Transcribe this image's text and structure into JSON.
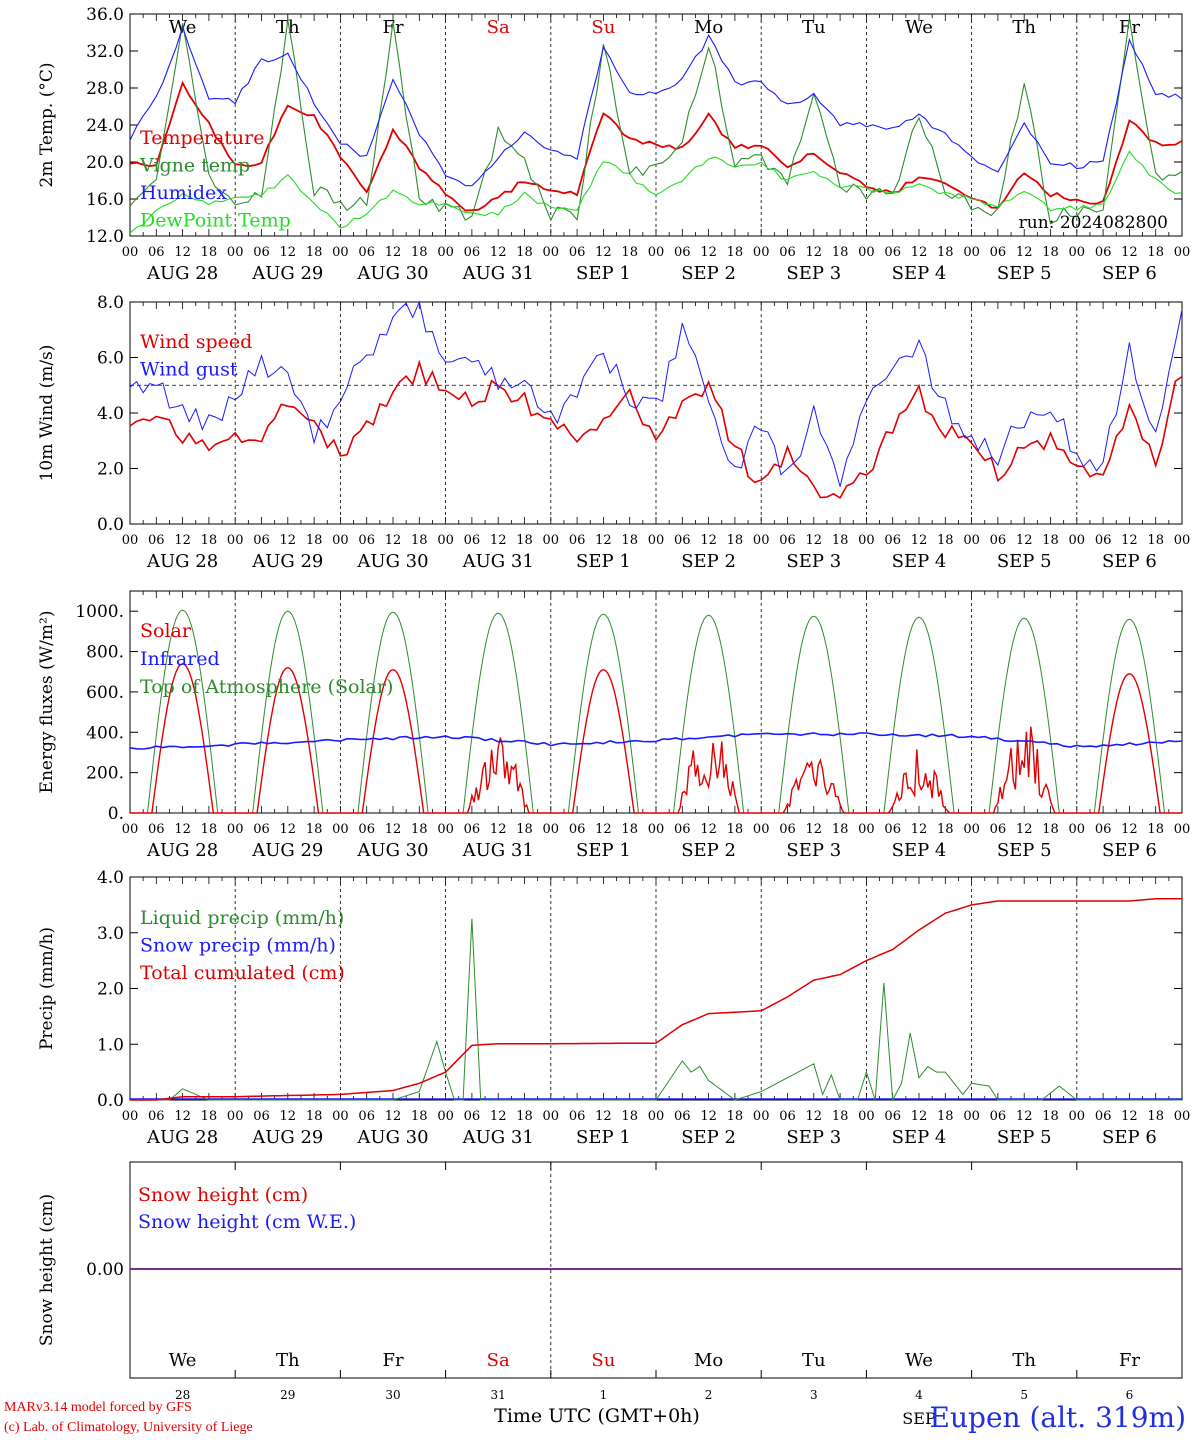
{
  "colors": {
    "red": "#e00000",
    "green": "#2e8b2e",
    "blue": "#1a1aff",
    "lightgreen": "#22dd22",
    "purple": "#7b2d8e"
  },
  "run_label": "run: 2024082800",
  "day_names": [
    "We",
    "Th",
    "Fr",
    "Sa",
    "Su",
    "Mo",
    "Tu",
    "We",
    "Th",
    "Fr"
  ],
  "day_name_colors": [
    "black",
    "black",
    "black",
    "red",
    "red",
    "black",
    "black",
    "black",
    "black",
    "black"
  ],
  "date_labels": [
    "AUG 28",
    "AUG 29",
    "AUG 30",
    "AUG 31",
    "SEP  1",
    "SEP  2",
    "SEP  3",
    "SEP  4",
    "SEP  5",
    "SEP  6"
  ],
  "hour_ticks": [
    "00",
    "06",
    "12",
    "18"
  ],
  "bottom_day_numbers": [
    "28",
    "29",
    "30",
    "31",
    "1",
    "2",
    "3",
    "4",
    "5",
    "6"
  ],
  "bottom_month": "SEP",
  "time_axis_label": "Time UTC (GMT+0h)",
  "footer": {
    "line1": "MARv3.14 model forced by GFS",
    "line2": "(c) Lab. of Climatology, University of Liege"
  },
  "station": "Eupen (alt. 319m)",
  "chart_data": [
    {
      "type": "line",
      "ylabel": "2m Temp. (°C)",
      "ylim": [
        12,
        36
      ],
      "yticks": [
        "12.0",
        "16.0",
        "20.0",
        "24.0",
        "28.0",
        "32.0",
        "36.0"
      ],
      "x_hours": [
        0,
        6,
        12,
        18,
        24,
        30,
        36,
        42,
        48,
        54,
        60,
        66,
        72,
        78,
        84,
        90,
        96,
        102,
        108,
        114,
        120,
        126,
        132,
        138,
        144,
        150,
        156,
        162,
        168,
        174,
        180,
        186,
        192,
        198,
        204,
        210,
        216,
        222,
        228,
        234,
        240
      ],
      "series": [
        {
          "name": "Temperature",
          "color": "red",
          "values": [
            20,
            19.5,
            28.5,
            24,
            19.5,
            20,
            26,
            25,
            20.5,
            17,
            23.5,
            19.5,
            16.5,
            14.5,
            16,
            18,
            17,
            16.5,
            25.5,
            22.5,
            22,
            21.5,
            25,
            21.5,
            22,
            19.5,
            21,
            19,
            17.5,
            16.5,
            18.5,
            17.5,
            16,
            15,
            19,
            16.5,
            16,
            15.5,
            24.5,
            22,
            22
          ]
        },
        {
          "name": "Vigne temp",
          "color": "green",
          "values": [
            16,
            18,
            34.5,
            18,
            15.5,
            17,
            35,
            17,
            15.5,
            15.5,
            34.5,
            16,
            15,
            14,
            23,
            20,
            14.5,
            14,
            33,
            19,
            19.5,
            22,
            33,
            20,
            20.5,
            17.5,
            27.5,
            17.5,
            16.5,
            16.5,
            25,
            17,
            15.5,
            14.5,
            29,
            14,
            14.5,
            15,
            35.5,
            18.5,
            18.5
          ]
        },
        {
          "name": "Humidex",
          "color": "blue",
          "values": [
            22.5,
            27,
            34.5,
            27,
            26.5,
            31,
            31.5,
            26.5,
            22,
            20.5,
            29,
            23,
            18.5,
            17.5,
            20.5,
            23,
            21,
            20.5,
            32.5,
            27.5,
            27.5,
            29,
            33.5,
            28.5,
            28.5,
            26,
            27.5,
            24,
            24,
            23.5,
            25,
            23,
            20.5,
            19,
            24,
            20,
            19.5,
            20,
            33,
            27.5,
            27
          ]
        },
        {
          "name": "DewPoint Temp",
          "color": "lightgreen",
          "values": [
            12.5,
            14.5,
            16.5,
            15.5,
            16,
            16.5,
            18.5,
            15.5,
            13,
            14.5,
            17,
            15.5,
            15.5,
            14.5,
            14.5,
            16.5,
            15,
            15,
            20,
            18.5,
            16.5,
            18,
            20.5,
            19.5,
            20,
            18,
            19,
            17.5,
            17,
            16.5,
            17.5,
            16.5,
            16,
            15,
            17,
            15,
            15,
            15.5,
            21,
            18,
            16.5
          ]
        }
      ]
    },
    {
      "type": "line",
      "ylabel": "10m Wind (m/s)",
      "ylim": [
        0,
        8
      ],
      "yticks": [
        "0.0",
        "2.0",
        "4.0",
        "6.0",
        "8.0"
      ],
      "reference_line": 5,
      "x_hours": [
        0,
        6,
        12,
        18,
        24,
        30,
        36,
        42,
        48,
        54,
        60,
        66,
        72,
        78,
        84,
        90,
        96,
        102,
        108,
        114,
        120,
        126,
        132,
        138,
        144,
        150,
        156,
        162,
        168,
        174,
        180,
        186,
        192,
        198,
        204,
        210,
        216,
        222,
        228,
        234,
        240
      ],
      "series": [
        {
          "name": "Wind speed",
          "color": "red",
          "values": [
            3.8,
            3.7,
            3.2,
            2.5,
            3.2,
            3.3,
            4.4,
            3.6,
            2.4,
            3.5,
            4.8,
            5.5,
            4.8,
            4.5,
            5,
            4.4,
            3.7,
            2.9,
            3.6,
            4.5,
            2.9,
            4.3,
            4.9,
            2.7,
            1.3,
            2.7,
            1.2,
            1.2,
            1.6,
            3.6,
            4.7,
            3.4,
            2.9,
            1.9,
            2.6,
            3.1,
            1.9,
            1.5,
            4.4,
            2.4,
            5.6
          ]
        },
        {
          "name": "Wind gust",
          "color": "blue",
          "values": [
            5.1,
            4.9,
            4.3,
            3.7,
            4.3,
            5.9,
            5.4,
            3.1,
            4.5,
            6.1,
            7.7,
            7.8,
            6,
            6.3,
            5.2,
            4.8,
            3.6,
            4.8,
            6.1,
            4.6,
            4.2,
            6.8,
            4.4,
            2,
            3.8,
            1.5,
            3.9,
            1.8,
            4,
            6.1,
            6.2,
            4.2,
            3.3,
            2.4,
            3.9,
            4.2,
            2.6,
            2.2,
            6.3,
            3.4,
            7.4
          ]
        }
      ]
    },
    {
      "type": "line",
      "ylabel": "Energy fluxes (W/m²)",
      "ylim": [
        0,
        1100
      ],
      "yticks": [
        "0.",
        "200.",
        "400.",
        "600.",
        "800.",
        "1000."
      ],
      "series": [
        {
          "name": "Solar",
          "color": "red",
          "peaks": [
            740,
            720,
            710,
            420,
            710,
            490,
            300,
            320,
            470,
            690
          ]
        },
        {
          "name": "Infrared",
          "color": "blue",
          "x_hours": [
            0,
            24,
            48,
            72,
            96,
            120,
            144,
            168,
            192,
            216,
            240
          ],
          "values": [
            320,
            340,
            360,
            380,
            340,
            360,
            390,
            390,
            380,
            330,
            355
          ]
        },
        {
          "name": "Top of Atmosphere (Solar)",
          "color": "green",
          "peaks": [
            1005,
            1000,
            995,
            990,
            985,
            980,
            975,
            970,
            965,
            960
          ]
        }
      ]
    },
    {
      "type": "line",
      "ylabel": "Precip (mm/h)",
      "ylim": [
        0,
        4
      ],
      "yticks": [
        "0.0",
        "1.0",
        "2.0",
        "3.0",
        "4.0"
      ],
      "series": [
        {
          "name": "Liquid precip (mm/h)",
          "color": "green",
          "x_hours": [
            0,
            6,
            9,
            12,
            15,
            18,
            24,
            60,
            66,
            70,
            72,
            74,
            76,
            78,
            80,
            84,
            90,
            96,
            120,
            126,
            128,
            130,
            132,
            138,
            144,
            150,
            156,
            158,
            160,
            162,
            166,
            168,
            170,
            172,
            174,
            176,
            178,
            180,
            182,
            184,
            186,
            190,
            192,
            196,
            198,
            204,
            208,
            212,
            216,
            240
          ],
          "values": [
            0,
            0,
            0,
            0.2,
            0.1,
            0,
            0,
            0,
            0.15,
            1.05,
            0.5,
            0,
            0,
            3.25,
            0,
            0,
            0,
            0,
            0,
            0.7,
            0.5,
            0.6,
            0.35,
            0,
            0.15,
            0.4,
            0.65,
            0.1,
            0.45,
            0,
            0,
            0.5,
            0,
            2.1,
            0,
            0.3,
            1.2,
            0.4,
            0.6,
            0.5,
            0.5,
            0.1,
            0.3,
            0.25,
            0,
            0,
            0,
            0.25,
            0,
            0
          ]
        },
        {
          "name": "Snow precip (mm/h)",
          "color": "blue",
          "values": [
            0
          ]
        },
        {
          "name": "Total cumulated (cm)",
          "color": "red",
          "x_hours": [
            0,
            6,
            12,
            24,
            48,
            60,
            66,
            72,
            78,
            84,
            96,
            120,
            126,
            132,
            144,
            150,
            156,
            162,
            168,
            174,
            180,
            186,
            192,
            198,
            204,
            210,
            216,
            228,
            234,
            240
          ],
          "values": [
            0,
            0,
            0.06,
            0.06,
            0.1,
            0.17,
            0.3,
            0.5,
            0.98,
            1.01,
            1.01,
            1.02,
            1.35,
            1.55,
            1.6,
            1.85,
            2.15,
            2.25,
            2.5,
            2.7,
            3.05,
            3.35,
            3.5,
            3.57,
            3.57,
            3.57,
            3.57,
            3.57,
            3.61,
            3.61
          ]
        }
      ]
    },
    {
      "type": "line",
      "ylabel": "Snow height (cm)",
      "yticks": [
        "0.00"
      ],
      "series": [
        {
          "name": "Snow height (cm)",
          "color": "red",
          "values": [
            0
          ]
        },
        {
          "name": "Snow height (cm W.E.)",
          "color": "blue",
          "values": [
            0
          ]
        }
      ]
    }
  ]
}
